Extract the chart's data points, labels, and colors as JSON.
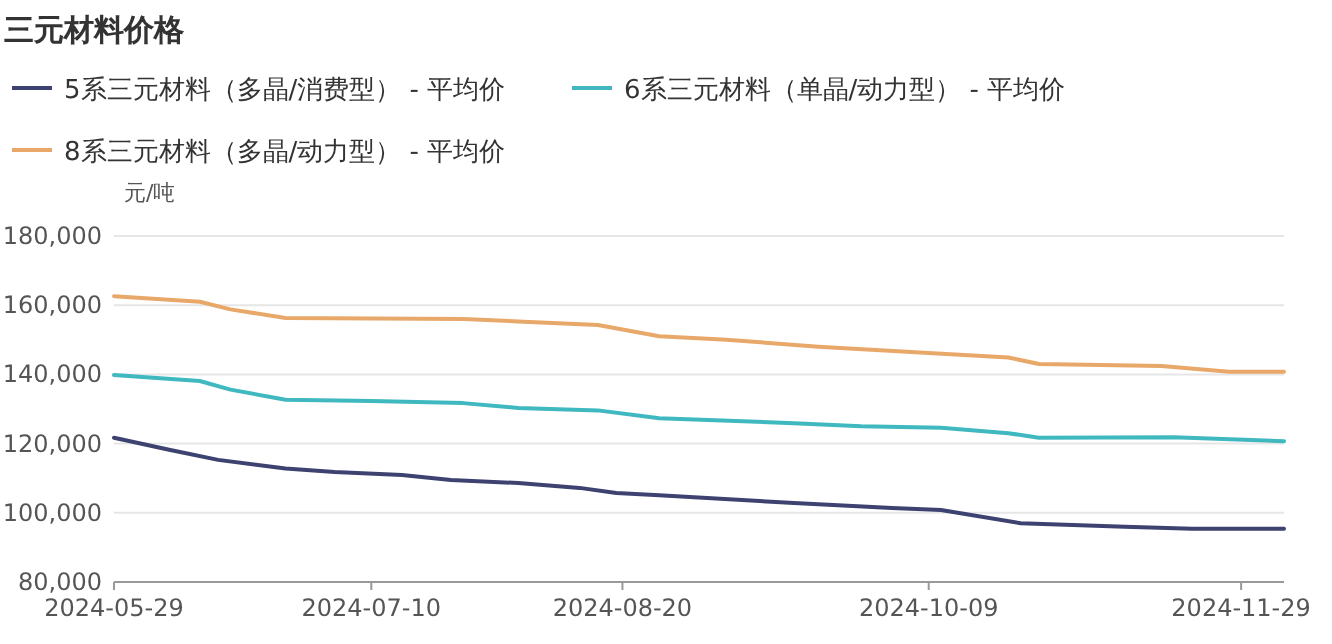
{
  "chart_data": {
    "type": "line",
    "title": "三元材料价格",
    "ylabel": "元/吨",
    "legend": "top left",
    "grid": "y",
    "line_style": "solid",
    "marker": "none",
    "xlim": [
      "2024-05-29",
      "2024-12-06"
    ],
    "xticks": [
      {
        "value": "2024-05-29",
        "label": "2024-05-29"
      },
      {
        "value": "2024-07-10",
        "label": "2024-07-10"
      },
      {
        "value": "2024-08-20",
        "label": "2024-08-20"
      },
      {
        "value": "2024-10-09",
        "label": "2024-10-09"
      },
      {
        "value": "2024-11-29",
        "label": "2024-11-29"
      }
    ],
    "ylim": [
      80000,
      180000
    ],
    "yticks": [
      {
        "value": 80000,
        "label": "80,000"
      },
      {
        "value": 100000,
        "label": "100,000"
      },
      {
        "value": 120000,
        "label": "120,000"
      },
      {
        "value": 140000,
        "label": "140,000"
      },
      {
        "value": 160000,
        "label": "160,000"
      },
      {
        "value": 180000,
        "label": "180,000"
      }
    ],
    "series": [
      {
        "name": "5系三元材料（多晶/消费型） - 平均价",
        "color": "#3d4270",
        "x": [
          "2024-05-29",
          "2024-06-07",
          "2024-06-15",
          "2024-06-26",
          "2024-07-04",
          "2024-07-15",
          "2024-07-23",
          "2024-08-03",
          "2024-08-13",
          "2024-08-19",
          "2024-08-26",
          "2024-09-17",
          "2024-10-03",
          "2024-10-11",
          "2024-10-24",
          "2024-11-10",
          "2024-11-21",
          "2024-12-06"
        ],
        "values": [
          121700,
          118200,
          115300,
          112800,
          111800,
          110900,
          109500,
          108600,
          107200,
          105700,
          105100,
          102800,
          101400,
          100800,
          97000,
          96000,
          95400,
          95400
        ]
      },
      {
        "name": "6系三元材料（单晶/动力型） - 平均价",
        "color": "#3fb8c0",
        "x": [
          "2024-05-29",
          "2024-06-12",
          "2024-06-17",
          "2024-06-26",
          "2024-07-10",
          "2024-07-25",
          "2024-08-03",
          "2024-08-16",
          "2024-08-26",
          "2024-09-17",
          "2024-09-28",
          "2024-10-11",
          "2024-10-22",
          "2024-10-27",
          "2024-11-18",
          "2024-12-06"
        ],
        "values": [
          139800,
          138100,
          135600,
          132700,
          132300,
          131700,
          130300,
          129600,
          127300,
          125900,
          125000,
          124600,
          123000,
          121700,
          121800,
          120700
        ]
      },
      {
        "name": "8系三元材料（多晶/动力型） - 平均价",
        "color": "#e8a86a",
        "x": [
          "2024-05-29",
          "2024-06-12",
          "2024-06-17",
          "2024-06-26",
          "2024-07-25",
          "2024-08-03",
          "2024-08-16",
          "2024-08-26",
          "2024-09-06",
          "2024-09-21",
          "2024-10-09",
          "2024-10-22",
          "2024-10-27",
          "2024-11-16",
          "2024-11-27",
          "2024-12-06"
        ],
        "values": [
          162600,
          161000,
          158800,
          156300,
          156000,
          155300,
          154300,
          151000,
          150000,
          148000,
          146200,
          144900,
          143000,
          142400,
          140800,
          140800
        ]
      }
    ]
  }
}
